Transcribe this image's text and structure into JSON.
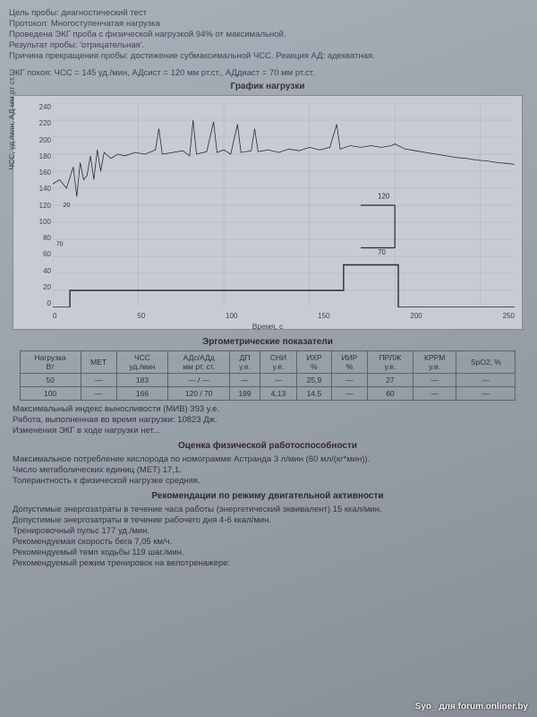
{
  "header": {
    "l1": "Цель пробы: диагностический тест",
    "l2": "Протокол: Многоступенчатая нагрузка",
    "l3": "Проведена ЭКГ проба с физической нагрузкой 94% от максимальной.",
    "l4": "Результат пробы: 'отрицательная'.",
    "l5": "Причина прекращения пробы: достижение субмаксимальной ЧСС. Реакция АД: адекватная.",
    "l6": "ЭКГ покоя: ЧСС = 145 уд./мин, АДсист = 120 мм рт.ст., АДдиаст = 70 мм рт.ст."
  },
  "chart": {
    "title": "График нагрузки",
    "y_label": "ЧСС, уд./мин, АД мм рт ст.",
    "x_label": "Время, с",
    "x_ticks": [
      "0",
      "50",
      "100",
      "150",
      "200",
      "250"
    ],
    "y_ticks": [
      "240",
      "220",
      "200",
      "180",
      "160",
      "140",
      "120",
      "100",
      "80",
      "60",
      "40",
      "20",
      "0"
    ],
    "y_min": 0,
    "y_max": 240,
    "x_min": 0,
    "x_max": 270,
    "bg_color": "#c8ccd2",
    "grid_color": "#aab0b8",
    "line_color": "#2a2a32",
    "annot_70_left": "70",
    "annot_20_left": "20",
    "annot_120": "120",
    "annot_70": "70",
    "hr_series": [
      [
        0,
        145
      ],
      [
        4,
        150
      ],
      [
        8,
        140
      ],
      [
        12,
        165
      ],
      [
        14,
        130
      ],
      [
        16,
        170
      ],
      [
        18,
        150
      ],
      [
        20,
        155
      ],
      [
        22,
        178
      ],
      [
        24,
        150
      ],
      [
        26,
        185
      ],
      [
        28,
        160
      ],
      [
        30,
        182
      ],
      [
        34,
        175
      ],
      [
        38,
        180
      ],
      [
        42,
        178
      ],
      [
        48,
        182
      ],
      [
        54,
        180
      ],
      [
        60,
        185
      ],
      [
        62,
        210
      ],
      [
        64,
        180
      ],
      [
        70,
        182
      ],
      [
        76,
        184
      ],
      [
        80,
        178
      ],
      [
        82,
        220
      ],
      [
        84,
        180
      ],
      [
        90,
        183
      ],
      [
        94,
        218
      ],
      [
        96,
        182
      ],
      [
        100,
        185
      ],
      [
        104,
        180
      ],
      [
        108,
        215
      ],
      [
        110,
        182
      ],
      [
        116,
        184
      ],
      [
        118,
        210
      ],
      [
        120,
        183
      ],
      [
        126,
        185
      ],
      [
        132,
        182
      ],
      [
        138,
        186
      ],
      [
        144,
        184
      ],
      [
        150,
        188
      ],
      [
        156,
        185
      ],
      [
        162,
        188
      ],
      [
        166,
        215
      ],
      [
        168,
        186
      ],
      [
        174,
        190
      ],
      [
        180,
        188
      ],
      [
        186,
        190
      ],
      [
        192,
        188
      ],
      [
        198,
        190
      ],
      [
        200,
        192
      ],
      [
        206,
        186
      ],
      [
        212,
        184
      ],
      [
        218,
        182
      ],
      [
        224,
        180
      ],
      [
        230,
        178
      ],
      [
        236,
        176
      ],
      [
        242,
        175
      ],
      [
        248,
        173
      ],
      [
        254,
        172
      ],
      [
        260,
        170
      ],
      [
        266,
        169
      ],
      [
        270,
        168
      ]
    ],
    "load_series": [
      [
        0,
        0
      ],
      [
        10,
        0
      ],
      [
        10,
        20
      ],
      [
        170,
        20
      ],
      [
        170,
        50
      ],
      [
        202,
        50
      ],
      [
        202,
        0
      ],
      [
        270,
        0
      ]
    ],
    "bp_sys": [
      [
        180,
        120
      ],
      [
        200,
        120
      ]
    ],
    "bp_dia": [
      [
        180,
        70
      ],
      [
        200,
        70
      ]
    ],
    "bp_vert": [
      [
        200,
        70
      ],
      [
        200,
        120
      ]
    ]
  },
  "ergo": {
    "title": "Эргометрические показатели",
    "cols": [
      "Нагрузка\nВт",
      "МЕТ",
      "ЧСС\nуд./мин",
      "АДс/АДд\nмм рт. ст.",
      "ДП\nу.е.",
      "СНИ\nу.е.",
      "ИХР\n%",
      "ИИР\n%",
      "ПРЛЖ\nу.е.",
      "КРРМ\nу.е.",
      "SpO2, %"
    ],
    "rows": [
      [
        "50",
        "—",
        "183",
        "— / —",
        "—",
        "—",
        "25,9",
        "—",
        "27",
        "—",
        "—"
      ],
      [
        "100",
        "—",
        "166",
        "120 / 70",
        "199",
        "4,13",
        "14,5",
        "—",
        "60",
        "—",
        "—"
      ]
    ]
  },
  "post_table": {
    "l1": "Максимальный индекс выносливости (МИВ) 393 у.е.",
    "l2": "Работа, выполненная во время нагрузки: 10823 Дж.",
    "l3": "Изменения ЭКГ в ходе нагрузки нет..."
  },
  "fitness": {
    "title": "Оценка физической работоспособности",
    "l1": "Максимальное потребление кислорода по номограмме Астранда 3 л/мин (60 мл/(кг*мин)).",
    "l2": "Число метаболических единиц (МЕТ) 17,1.",
    "l3": "Толерантность к физической нагрузке средняя."
  },
  "recs": {
    "title": "Рекомендации по режиму двигательной активности",
    "l1": "Допустимые энергозатраты в течение часа работы (энергетический эквивалент) 15 ккал/мин.",
    "l2": "Допустимые энергозатраты в течение рабочего дня 4-6 ккал/мин.",
    "l3": "Тренировочный пульс 177 уд./мин.",
    "l4": "Рекомендуемая скорость бега 7,05 км/ч.",
    "l5": "Рекомендуемый темп ходьбы 119 шаг./мин.",
    "l6": "Рекомендуемый режим тренировок на велотренажере:"
  },
  "watermark": "Syo_ для forum.onliner.by"
}
